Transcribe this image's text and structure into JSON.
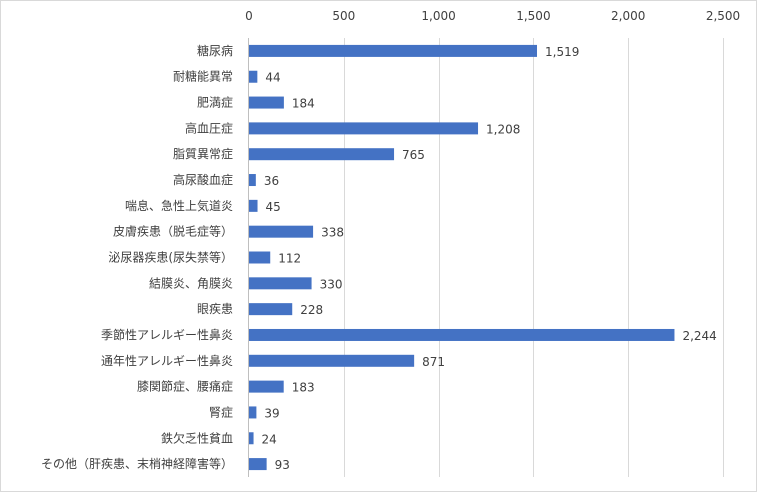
{
  "chart_data": {
    "type": "bar",
    "orientation": "horizontal",
    "title": "",
    "xlabel": "",
    "ylabel": "",
    "xlim": [
      0,
      2500
    ],
    "xticks": [
      0,
      500,
      1000,
      1500,
      2000,
      2500
    ],
    "xtick_labels": [
      "0",
      "500",
      "1,000",
      "1,500",
      "2,000",
      "2,500"
    ],
    "axis_position": "top",
    "grid": true,
    "legend": "none",
    "bar_color": "#4472c4",
    "categories": [
      "糖尿病",
      "耐糖能異常",
      "肥満症",
      "高血圧症",
      "脂質異常症",
      "高尿酸血症",
      "喘息、急性上気道炎",
      "皮膚疾患（脱毛症等）",
      "泌尿器疾患(尿失禁等）",
      "結膜炎、角膜炎",
      "眼疾患",
      "季節性アレルギー性鼻炎",
      "通年性アレルギー性鼻炎",
      "膝関節症、腰痛症",
      "腎症",
      "鉄欠乏性貧血",
      "その他（肝疾患、末梢神経障害等）"
    ],
    "values": [
      1519,
      44,
      184,
      1208,
      765,
      36,
      45,
      338,
      112,
      330,
      228,
      2244,
      871,
      183,
      39,
      24,
      93
    ],
    "value_labels": [
      "1,519",
      "44",
      "184",
      "1,208",
      "765",
      "36",
      "45",
      "338",
      "112",
      "330",
      "228",
      "2,244",
      "871",
      "183",
      "39",
      "24",
      "93"
    ]
  }
}
